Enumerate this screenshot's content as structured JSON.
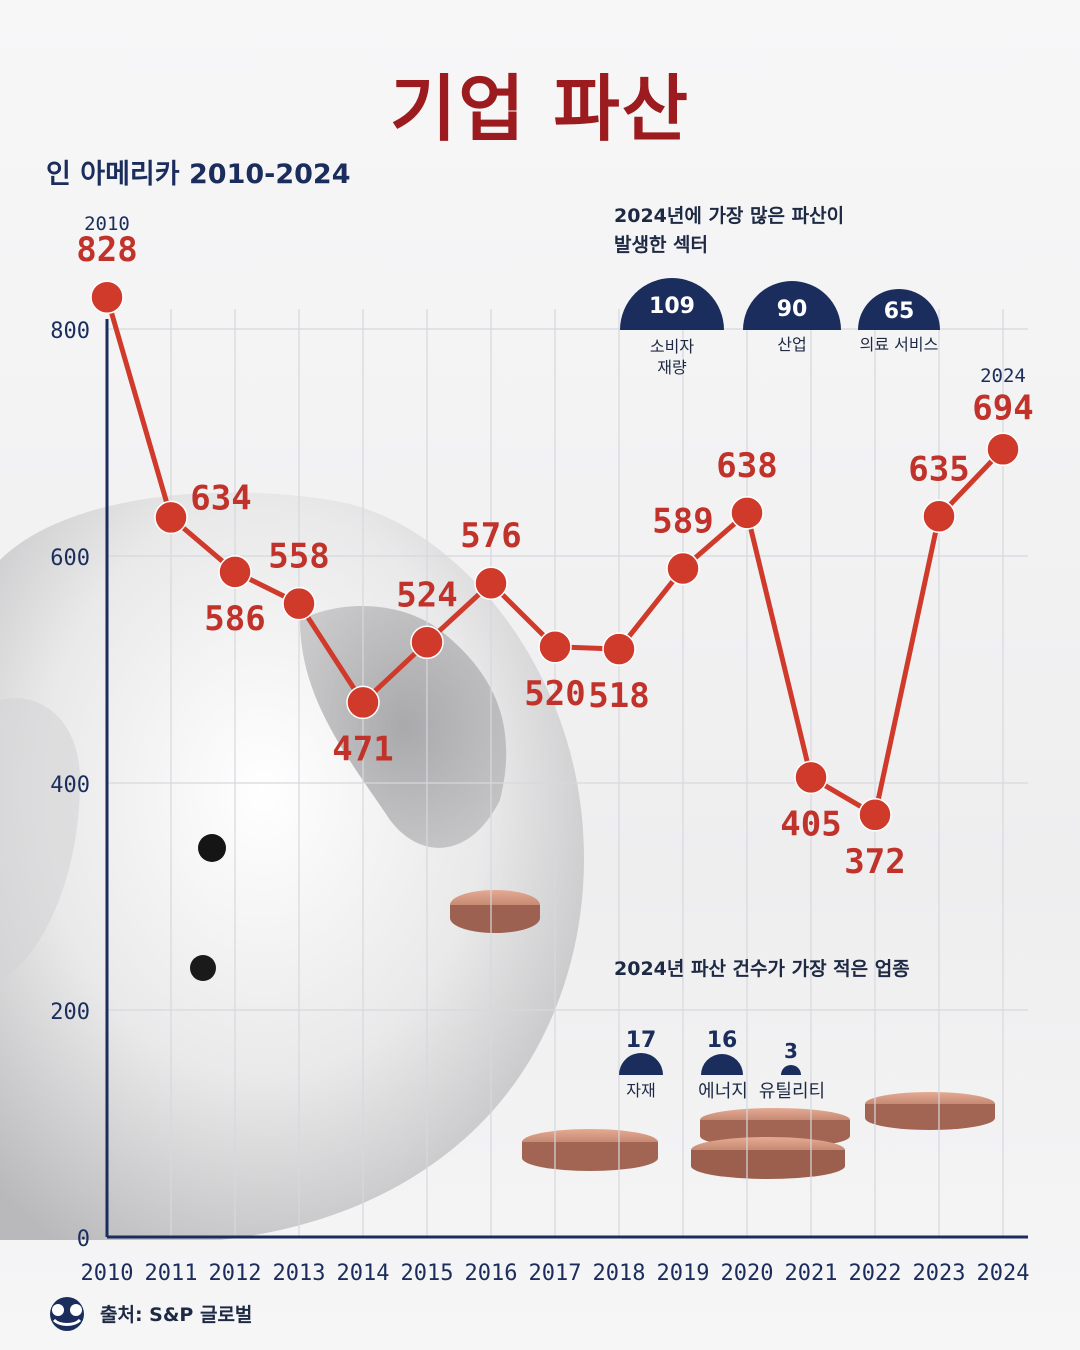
{
  "title": "기업 파산",
  "subtitle": "인 아메리카 2010-2024",
  "chart_data": {
    "type": "line",
    "title": "기업 파산",
    "subtitle": "인 아메리카 2010-2024",
    "x": [
      2010,
      2011,
      2012,
      2013,
      2014,
      2015,
      2016,
      2017,
      2018,
      2019,
      2020,
      2021,
      2022,
      2023,
      2024
    ],
    "values": [
      828,
      634,
      586,
      558,
      471,
      524,
      576,
      520,
      518,
      589,
      638,
      405,
      372,
      635,
      694
    ],
    "y_ticks": [
      0,
      200,
      400,
      600,
      800
    ],
    "ylim": [
      0,
      800
    ],
    "grid": true,
    "first_year_label": "2010",
    "last_year_label": "2024",
    "line_color": "#cf3a2b",
    "label_color": "#c0322a",
    "axis_color": "#1b2d5c"
  },
  "top_sectors": {
    "title_line1": "2024년에 가장 많은 파산이",
    "title_line2": "발생한 섹터",
    "items": [
      {
        "value": "109",
        "label_line1": "소비자",
        "label_line2": "재량"
      },
      {
        "value": "90",
        "label_line1": "산업",
        "label_line2": ""
      },
      {
        "value": "65",
        "label_line1": "의료 서비스",
        "label_line2": ""
      }
    ]
  },
  "bottom_sectors": {
    "title": "2024년 파산 건수가 가장 적은 업종",
    "items": [
      {
        "value": "17",
        "label": "자재"
      },
      {
        "value": "16",
        "label": "에너지"
      },
      {
        "value": "3",
        "label": "유틸리티"
      }
    ]
  },
  "source": "출처: S&P 글로벌",
  "colors": {
    "navy": "#1b2d5c",
    "red": "#cf3a2b",
    "title_red": "#9b1b1e"
  }
}
